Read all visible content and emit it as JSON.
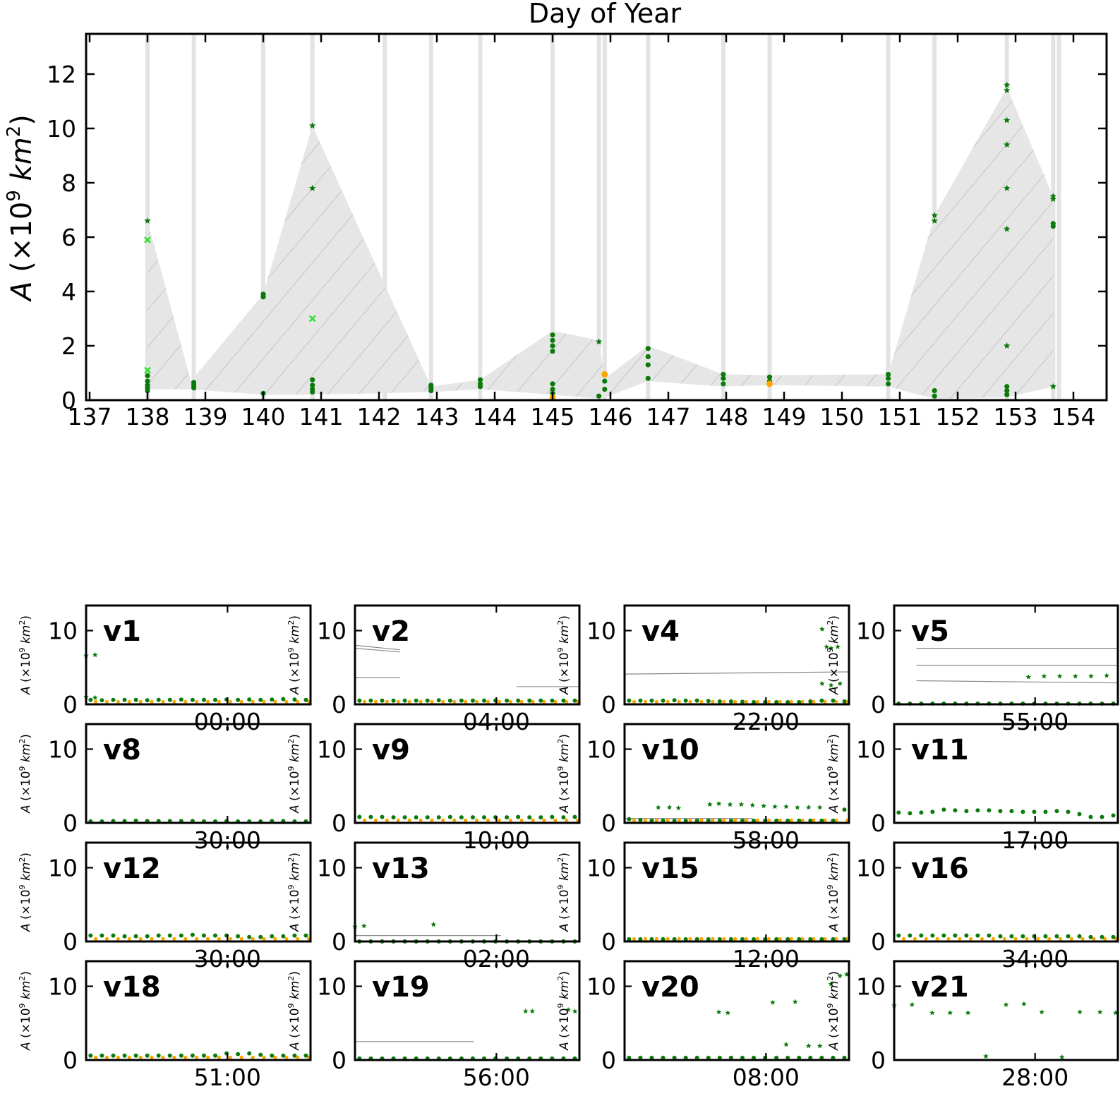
{
  "chart_data": [
    {
      "type": "scatter",
      "title": "Day of Year",
      "xlabel": "",
      "ylabel": "A (×10^9 km^2)",
      "xlim": [
        137,
        154.6
      ],
      "ylim": [
        0,
        13.4
      ],
      "xticks": [
        137,
        138,
        139,
        140,
        141,
        142,
        143,
        144,
        145,
        146,
        147,
        148,
        149,
        150,
        151,
        152,
        153,
        154
      ],
      "yticks": [
        0,
        2,
        4,
        6,
        8,
        10,
        12
      ],
      "grid": false,
      "colors": {
        "dark_green": "#0a7a0a",
        "light_green": "#2ee02e",
        "orange": "#ffa500",
        "band": "#d9d9d9",
        "envelope": "#e6e6e6"
      },
      "highlight_days": [
        138.0,
        138.8,
        140.0,
        140.85,
        142.1,
        142.9,
        143.75,
        145.0,
        145.8,
        145.9,
        146.65,
        147.95,
        148.75,
        150.8,
        151.6,
        152.85,
        153.65,
        153.75
      ],
      "envelope_upper": [
        [
          138.0,
          6.6
        ],
        [
          138.75,
          0.7
        ],
        [
          140.0,
          3.9
        ],
        [
          140.85,
          10.1
        ],
        [
          142.9,
          0.5
        ],
        [
          143.75,
          0.75
        ],
        [
          145.0,
          2.55
        ],
        [
          145.8,
          2.2
        ],
        [
          145.9,
          0.8
        ],
        [
          146.65,
          2.0
        ],
        [
          147.95,
          0.95
        ],
        [
          148.75,
          0.92
        ],
        [
          150.8,
          0.95
        ],
        [
          151.6,
          6.8
        ],
        [
          152.85,
          11.5
        ],
        [
          153.65,
          7.5
        ]
      ],
      "envelope_lower": [
        [
          153.65,
          0.5
        ],
        [
          152.85,
          0.1
        ],
        [
          151.6,
          0.05
        ],
        [
          150.8,
          0.5
        ],
        [
          148.75,
          0.55
        ],
        [
          147.95,
          0.5
        ],
        [
          146.65,
          0.7
        ],
        [
          145.9,
          0.1
        ],
        [
          145.8,
          0.05
        ],
        [
          145.0,
          0.2
        ],
        [
          143.75,
          0.4
        ],
        [
          142.9,
          0.3
        ],
        [
          140.85,
          0.2
        ],
        [
          140.0,
          0.2
        ],
        [
          138.75,
          0.4
        ],
        [
          138.0,
          0.4
        ]
      ],
      "series": [
        {
          "marker": "circle",
          "color": "dark_green",
          "x": [
            138.0,
            138.0,
            138.0,
            138.0,
            138.0,
            138.8,
            138.8,
            138.8,
            140.0,
            140.0,
            140.0,
            140.85,
            140.85,
            140.85,
            140.85,
            142.9,
            142.9,
            142.9,
            143.75,
            143.75,
            143.75,
            145.0,
            145.0,
            145.0,
            145.0,
            145.0,
            145.0,
            145.0,
            145.8,
            145.9,
            145.9,
            146.65,
            146.65,
            146.65,
            146.65,
            147.95,
            147.95,
            147.95,
            148.75,
            148.75,
            150.8,
            150.8,
            150.8,
            151.6,
            151.6,
            152.85,
            152.85,
            152.85,
            153.65,
            153.65
          ],
          "y": [
            0.9,
            0.7,
            0.55,
            0.45,
            0.35,
            0.65,
            0.55,
            0.45,
            3.9,
            3.8,
            0.25,
            0.75,
            0.55,
            0.4,
            0.3,
            0.55,
            0.45,
            0.35,
            0.75,
            0.6,
            0.5,
            2.4,
            2.2,
            2.0,
            1.8,
            0.6,
            0.4,
            0.25,
            0.15,
            0.7,
            0.4,
            1.9,
            1.6,
            1.3,
            0.8,
            0.95,
            0.8,
            0.6,
            0.85,
            0.7,
            0.95,
            0.8,
            0.6,
            0.35,
            0.15,
            0.5,
            0.35,
            0.2,
            6.5,
            6.4
          ]
        },
        {
          "marker": "star",
          "color": "dark_green",
          "x": [
            138.0,
            140.85,
            140.85,
            145.8,
            151.6,
            151.6,
            152.85,
            152.85,
            152.85,
            152.85,
            152.85,
            152.85,
            152.85,
            153.65,
            153.65,
            153.65
          ],
          "y": [
            6.6,
            10.1,
            7.8,
            2.15,
            6.8,
            6.6,
            11.6,
            11.4,
            10.3,
            9.4,
            7.8,
            6.3,
            2.0,
            7.5,
            7.4,
            0.5
          ]
        },
        {
          "marker": "x",
          "color": "light_green",
          "x": [
            138.0,
            138.0,
            140.85
          ],
          "y": [
            5.9,
            1.1,
            3.0
          ]
        },
        {
          "marker": "circle",
          "color": "orange",
          "x": [
            145.9,
            145.0,
            148.75
          ],
          "y": [
            0.95,
            0.1,
            0.6
          ]
        }
      ]
    },
    {
      "type": "scatter",
      "panels": [
        {
          "label": "v1",
          "tick": "00:00",
          "points": [
            0.6,
            0.55,
            0.6,
            0.6,
            0.6,
            0.55,
            0.6,
            0.6,
            0.65,
            0.6,
            0.6,
            0.6,
            0.65,
            0.6,
            0.65,
            0.6,
            0.65,
            0.7,
            0.65,
            0.6
          ],
          "extra": [
            [
              0.0,
              6.6
            ],
            [
              0.04,
              6.7
            ],
            [
              0.04,
              0.9
            ],
            [
              0.0,
              1.0
            ]
          ],
          "lines": [],
          "orange": true
        },
        {
          "label": "v2",
          "tick": "04:00",
          "points": [
            0.5,
            0.5,
            0.5,
            0.5,
            0.5,
            0.5,
            0.5,
            0.55,
            0.5,
            0.5,
            0.5,
            0.5,
            0.5,
            0.5,
            0.5,
            0.5,
            0.5,
            0.5,
            0.5,
            0.5
          ],
          "extra": [],
          "lines": [
            [
              0.0,
              8.0,
              0.2,
              7.4
            ],
            [
              0.0,
              7.6,
              0.2,
              7.1
            ],
            [
              0.0,
              3.6,
              0.2,
              3.6
            ],
            [
              0.72,
              2.4,
              1.0,
              2.4
            ]
          ],
          "orange": true
        },
        {
          "label": "v4",
          "tick": "22:00",
          "points": [
            0.5,
            0.5,
            0.5,
            0.5,
            0.55,
            0.5,
            0.5,
            0.45,
            0.4,
            0.4,
            0.35,
            0.3,
            0.3,
            0.3,
            0.3,
            0.3,
            0.4,
            0.5,
            0.5,
            0.4
          ],
          "extra": [
            [
              0.88,
              10.2
            ],
            [
              0.9,
              7.8
            ],
            [
              0.92,
              7.6
            ],
            [
              0.95,
              7.8
            ],
            [
              0.88,
              2.8
            ],
            [
              0.92,
              2.6
            ],
            [
              0.96,
              2.8
            ]
          ],
          "lines": [
            [
              0.0,
              4.1,
              1.0,
              4.4
            ]
          ],
          "orange": true
        },
        {
          "label": "v5",
          "tick": "55:00",
          "points": [
            0.1,
            0.1,
            0.1,
            0.1,
            0.1,
            0.1,
            0.1,
            0.1,
            0.1,
            0.1,
            0.1,
            0.1,
            0.1,
            0.1,
            0.1,
            0.1,
            0.1,
            0.1,
            0.1,
            0.1
          ],
          "extra": [
            [
              0.6,
              3.7
            ],
            [
              0.67,
              3.8
            ],
            [
              0.74,
              3.8
            ],
            [
              0.81,
              3.8
            ],
            [
              0.88,
              3.8
            ],
            [
              0.95,
              3.9
            ]
          ],
          "lines": [
            [
              0.1,
              7.6,
              1.0,
              7.6
            ],
            [
              0.1,
              5.3,
              1.0,
              5.3
            ],
            [
              0.1,
              3.2,
              1.0,
              2.9
            ]
          ],
          "orange": false
        },
        {
          "label": "v8",
          "tick": "30:00",
          "points": [
            0.2,
            0.2,
            0.25,
            0.25,
            0.3,
            0.25,
            0.25,
            0.25,
            0.25,
            0.25,
            0.2,
            0.2,
            0.25,
            0.2,
            0.2,
            0.2,
            0.25,
            0.25,
            0.2,
            0.2
          ],
          "extra": [],
          "lines": [],
          "orange": false
        },
        {
          "label": "v9",
          "tick": "10:00",
          "points": [
            0.8,
            0.8,
            0.8,
            0.75,
            0.75,
            0.75,
            0.75,
            0.75,
            0.8,
            0.75,
            0.75,
            0.75,
            0.75,
            0.75,
            0.8,
            0.75,
            0.75,
            0.8,
            0.75,
            0.8
          ],
          "extra": [],
          "lines": [],
          "orange": true
        },
        {
          "label": "v10",
          "tick": "58:00",
          "points": [
            0.5,
            0.4,
            0.3,
            0.3,
            0.3,
            0.3,
            0.3,
            0.3,
            0.3,
            0.3,
            0.3,
            0.3,
            0.3,
            0.3,
            0.3,
            0.3,
            0.3,
            0.3,
            0.3,
            1.8
          ],
          "extra": [
            [
              0.15,
              2.1
            ],
            [
              0.2,
              2.1
            ],
            [
              0.24,
              2.0
            ],
            [
              0.38,
              2.5
            ],
            [
              0.42,
              2.6
            ],
            [
              0.47,
              2.5
            ],
            [
              0.52,
              2.5
            ],
            [
              0.57,
              2.4
            ],
            [
              0.62,
              2.3
            ],
            [
              0.67,
              2.2
            ],
            [
              0.72,
              2.2
            ],
            [
              0.77,
              2.1
            ],
            [
              0.82,
              2.1
            ],
            [
              0.87,
              2.1
            ]
          ],
          "lines": [
            [
              0.0,
              0.6,
              0.57,
              0.6
            ]
          ],
          "orange": true
        },
        {
          "label": "v11",
          "tick": "17:00",
          "points": [
            1.4,
            1.3,
            1.4,
            1.5,
            1.8,
            1.7,
            1.6,
            1.7,
            1.7,
            1.6,
            1.6,
            1.5,
            1.5,
            1.5,
            1.6,
            1.5,
            1.2,
            0.8,
            0.8,
            1.0
          ],
          "extra": [],
          "lines": [],
          "orange": false
        },
        {
          "label": "v12",
          "tick": "30:00",
          "points": [
            0.8,
            0.8,
            0.8,
            0.7,
            0.7,
            0.7,
            0.8,
            0.8,
            0.8,
            0.9,
            0.8,
            0.8,
            0.8,
            0.7,
            0.6,
            0.6,
            0.7,
            0.7,
            0.8,
            0.8
          ],
          "extra": [],
          "lines": [],
          "orange": true
        },
        {
          "label": "v13",
          "tick": "02:00",
          "points": [
            0.0,
            0.0,
            0.0,
            0.0,
            0.0,
            0.0,
            0.0,
            0.0,
            0.0,
            0.0,
            0.0,
            0.0,
            0.0,
            0.0,
            0.0,
            0.0,
            0.0,
            0.0,
            0.0,
            0.0
          ],
          "extra": [
            [
              0.0,
              2.0
            ],
            [
              0.04,
              2.1
            ],
            [
              0.35,
              2.3
            ]
          ],
          "lines": [
            [
              0.0,
              0.8,
              0.65,
              0.8
            ]
          ],
          "orange": false
        },
        {
          "label": "v15",
          "tick": "12:00",
          "points": [
            0.3,
            0.3,
            0.3,
            0.3,
            0.3,
            0.3,
            0.3,
            0.3,
            0.3,
            0.3,
            0.3,
            0.3,
            0.3,
            0.3,
            0.3,
            0.3,
            0.3,
            0.3,
            0.3,
            0.3
          ],
          "extra": [],
          "lines": [],
          "orange": true
        },
        {
          "label": "v16",
          "tick": "34:00",
          "points": [
            0.8,
            0.8,
            0.8,
            0.8,
            0.8,
            0.8,
            0.8,
            0.8,
            0.8,
            0.7,
            0.7,
            0.7,
            0.7,
            0.7,
            0.7,
            0.7,
            0.7,
            0.6,
            0.6,
            0.6
          ],
          "extra": [],
          "lines": [],
          "orange": true
        },
        {
          "label": "v18",
          "tick": "51:00",
          "points": [
            0.6,
            0.6,
            0.6,
            0.6,
            0.6,
            0.6,
            0.6,
            0.6,
            0.6,
            0.6,
            0.6,
            0.6,
            0.9,
            0.8,
            0.9,
            0.7,
            0.6,
            0.6,
            0.6,
            0.6
          ],
          "extra": [],
          "lines": [],
          "orange": true
        },
        {
          "label": "v19",
          "tick": "56:00",
          "points": [
            0.2,
            0.2,
            0.2,
            0.2,
            0.2,
            0.2,
            0.2,
            0.2,
            0.2,
            0.2,
            0.2,
            0.2,
            0.2,
            0.2,
            0.2,
            0.2,
            0.2,
            0.2,
            0.2,
            0.2
          ],
          "extra": [
            [
              0.76,
              6.6
            ],
            [
              0.79,
              6.6
            ],
            [
              0.95,
              6.8
            ],
            [
              0.98,
              6.6
            ]
          ],
          "lines": [
            [
              0.0,
              2.5,
              0.53,
              2.5
            ]
          ],
          "orange": false
        },
        {
          "label": "v20",
          "tick": "08:00",
          "points": [
            0.3,
            0.3,
            0.3,
            0.3,
            0.3,
            0.3,
            0.3,
            0.3,
            0.3,
            0.3,
            0.3,
            0.3,
            0.3,
            0.3,
            0.3,
            0.3,
            0.3,
            0.3,
            0.3,
            0.3
          ],
          "extra": [
            [
              0.42,
              6.5
            ],
            [
              0.46,
              6.4
            ],
            [
              0.66,
              7.8
            ],
            [
              0.72,
              2.1
            ],
            [
              0.76,
              7.9
            ],
            [
              0.82,
              1.9
            ],
            [
              0.87,
              1.9
            ],
            [
              0.92,
              10.3
            ],
            [
              0.96,
              11.4
            ],
            [
              0.99,
              11.6
            ]
          ],
          "lines": [],
          "orange": false
        },
        {
          "label": "v21",
          "tick": "28:00",
          "points": [],
          "extra": [
            [
              0.0,
              7.4
            ],
            [
              0.08,
              7.5
            ],
            [
              0.17,
              6.4
            ],
            [
              0.25,
              6.4
            ],
            [
              0.33,
              6.4
            ],
            [
              0.41,
              0.5
            ],
            [
              0.5,
              7.5
            ],
            [
              0.58,
              7.6
            ],
            [
              0.66,
              6.5
            ],
            [
              0.75,
              0.4
            ],
            [
              0.83,
              6.5
            ],
            [
              0.92,
              6.5
            ],
            [
              1.0,
              6.4
            ]
          ],
          "lines": [],
          "orange": false
        }
      ],
      "ylim": [
        0,
        13.4
      ],
      "yticks": [
        0,
        10
      ],
      "ylabel": "A (×10^9 km^2)"
    }
  ]
}
